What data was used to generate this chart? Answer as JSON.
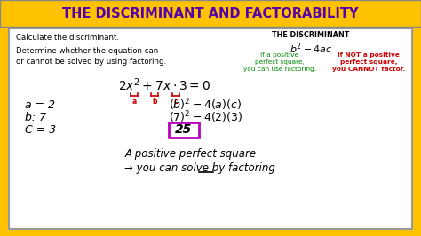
{
  "title": "THE DISCRIMINANT AND FACTORABILITY",
  "title_color": "#5500AA",
  "title_bg": "#FFC200",
  "outer_bg": "#FFC200",
  "inner_bg": "#FFFFFF",
  "left_instruction1": "Calculate the discriminant.",
  "left_instruction2": "Determine whether the equation can\nor cannot be solved by using factoring.",
  "right_header": "THE DISCRIMINANT",
  "right_formula": "$b^2 - 4ac$",
  "right_green_text": "If a positive\nperfect square,\nyou can use factoring.",
  "right_red_text": "If NOT a positive\nperfect square,\nyou CANNOT factor.",
  "val_a": "a = 2",
  "val_b": "b: 7",
  "val_c": "C = 3",
  "disc_result": "25",
  "conclusion1": "A positive perfect square",
  "conclusion2": "→ you can solve by factoring",
  "green_color": "#008800",
  "red_color": "#CC0000",
  "bracket_color": "#CC0000",
  "result_box_color": "#BB00BB",
  "underline_color": "#000000"
}
